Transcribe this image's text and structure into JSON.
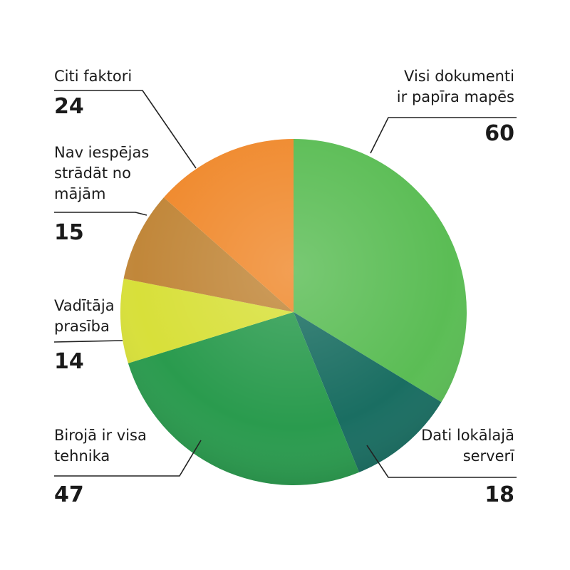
{
  "chart_data": {
    "type": "pie",
    "start_angle_deg": 0,
    "direction": "clockwise",
    "slices": [
      {
        "label": "Visi dokumenti\nir papīra mapēs",
        "value": 60,
        "color": "#5bbd55"
      },
      {
        "label": "Dati lokālajā\nserverī",
        "value": 18,
        "color": "#1a6e62"
      },
      {
        "label": "Birojā ir visa\ntehnika",
        "value": 47,
        "color": "#2a9b4e"
      },
      {
        "label": "Vadītāja\nprasība",
        "value": 14,
        "color": "#d8e03a"
      },
      {
        "label": "Nav iespējas\nstrādāt no\nmājām",
        "value": 15,
        "color": "#c1873a"
      },
      {
        "label": "Citi faktori",
        "value": 24,
        "color": "#f08a2e"
      }
    ],
    "title": "",
    "legend": "none"
  }
}
